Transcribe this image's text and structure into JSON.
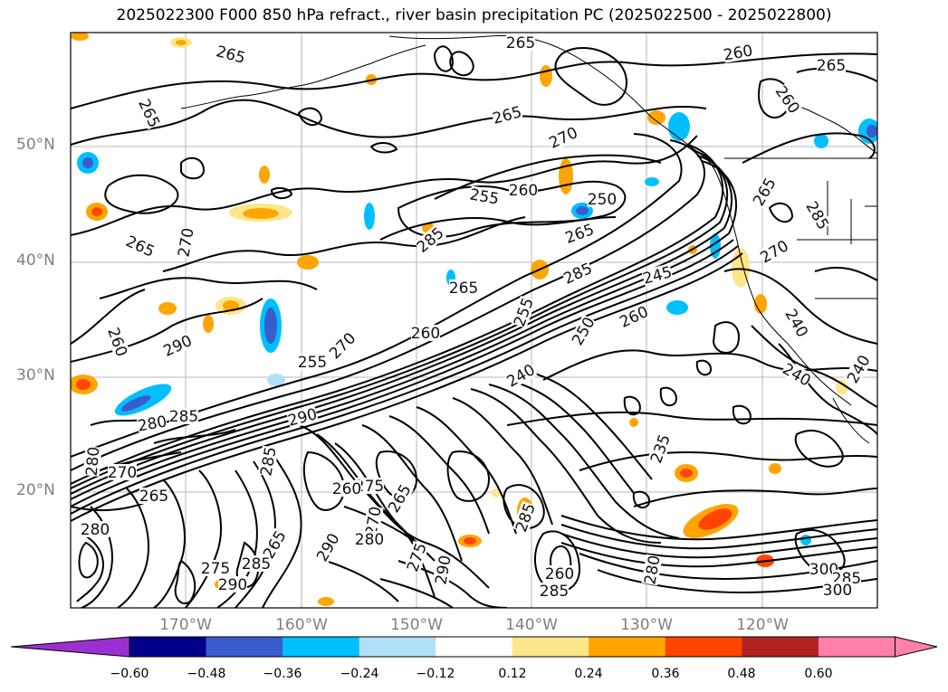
{
  "title": "2025022300 F000 850 hPa refract., river basin precipitation PC (2025022500 - 2025022800)",
  "map": {
    "lat_labels": [
      "50°N",
      "40°N",
      "30°N",
      "20°N"
    ],
    "lon_labels": [
      "170°W",
      "160°W",
      "150°W",
      "140°W",
      "130°W",
      "120°W"
    ],
    "contour_labels": [
      "265",
      "265",
      "265",
      "265",
      "260",
      "265",
      "260",
      "255",
      "260",
      "250",
      "270",
      "265",
      "265",
      "270",
      "285",
      "285",
      "245",
      "270",
      "265",
      "285",
      "260",
      "290",
      "255",
      "265",
      "270",
      "260",
      "255",
      "240",
      "250",
      "260",
      "290",
      "280",
      "285",
      "235",
      "240",
      "240",
      "240",
      "285",
      "280",
      "270",
      "275",
      "260",
      "265",
      "270",
      "280",
      "265",
      "290",
      "280",
      "275",
      "285",
      "265",
      "260",
      "290",
      "285",
      "300",
      "285",
      "275",
      "290",
      "280",
      "300",
      "285"
    ]
  },
  "colorbar": {
    "ticks": [
      "−0.60",
      "−0.48",
      "−0.36",
      "−0.24",
      "−0.12",
      "0.12",
      "0.24",
      "0.36",
      "0.48",
      "0.60"
    ],
    "colors": [
      "#9b30d0",
      "#00008b",
      "#3a5ccc",
      "#00bfff",
      "#b0e0f8",
      "#ffffff",
      "#fce68a",
      "#ffa500",
      "#ff4500",
      "#b22222",
      "#ff80a8",
      "#ff80a8"
    ]
  }
}
